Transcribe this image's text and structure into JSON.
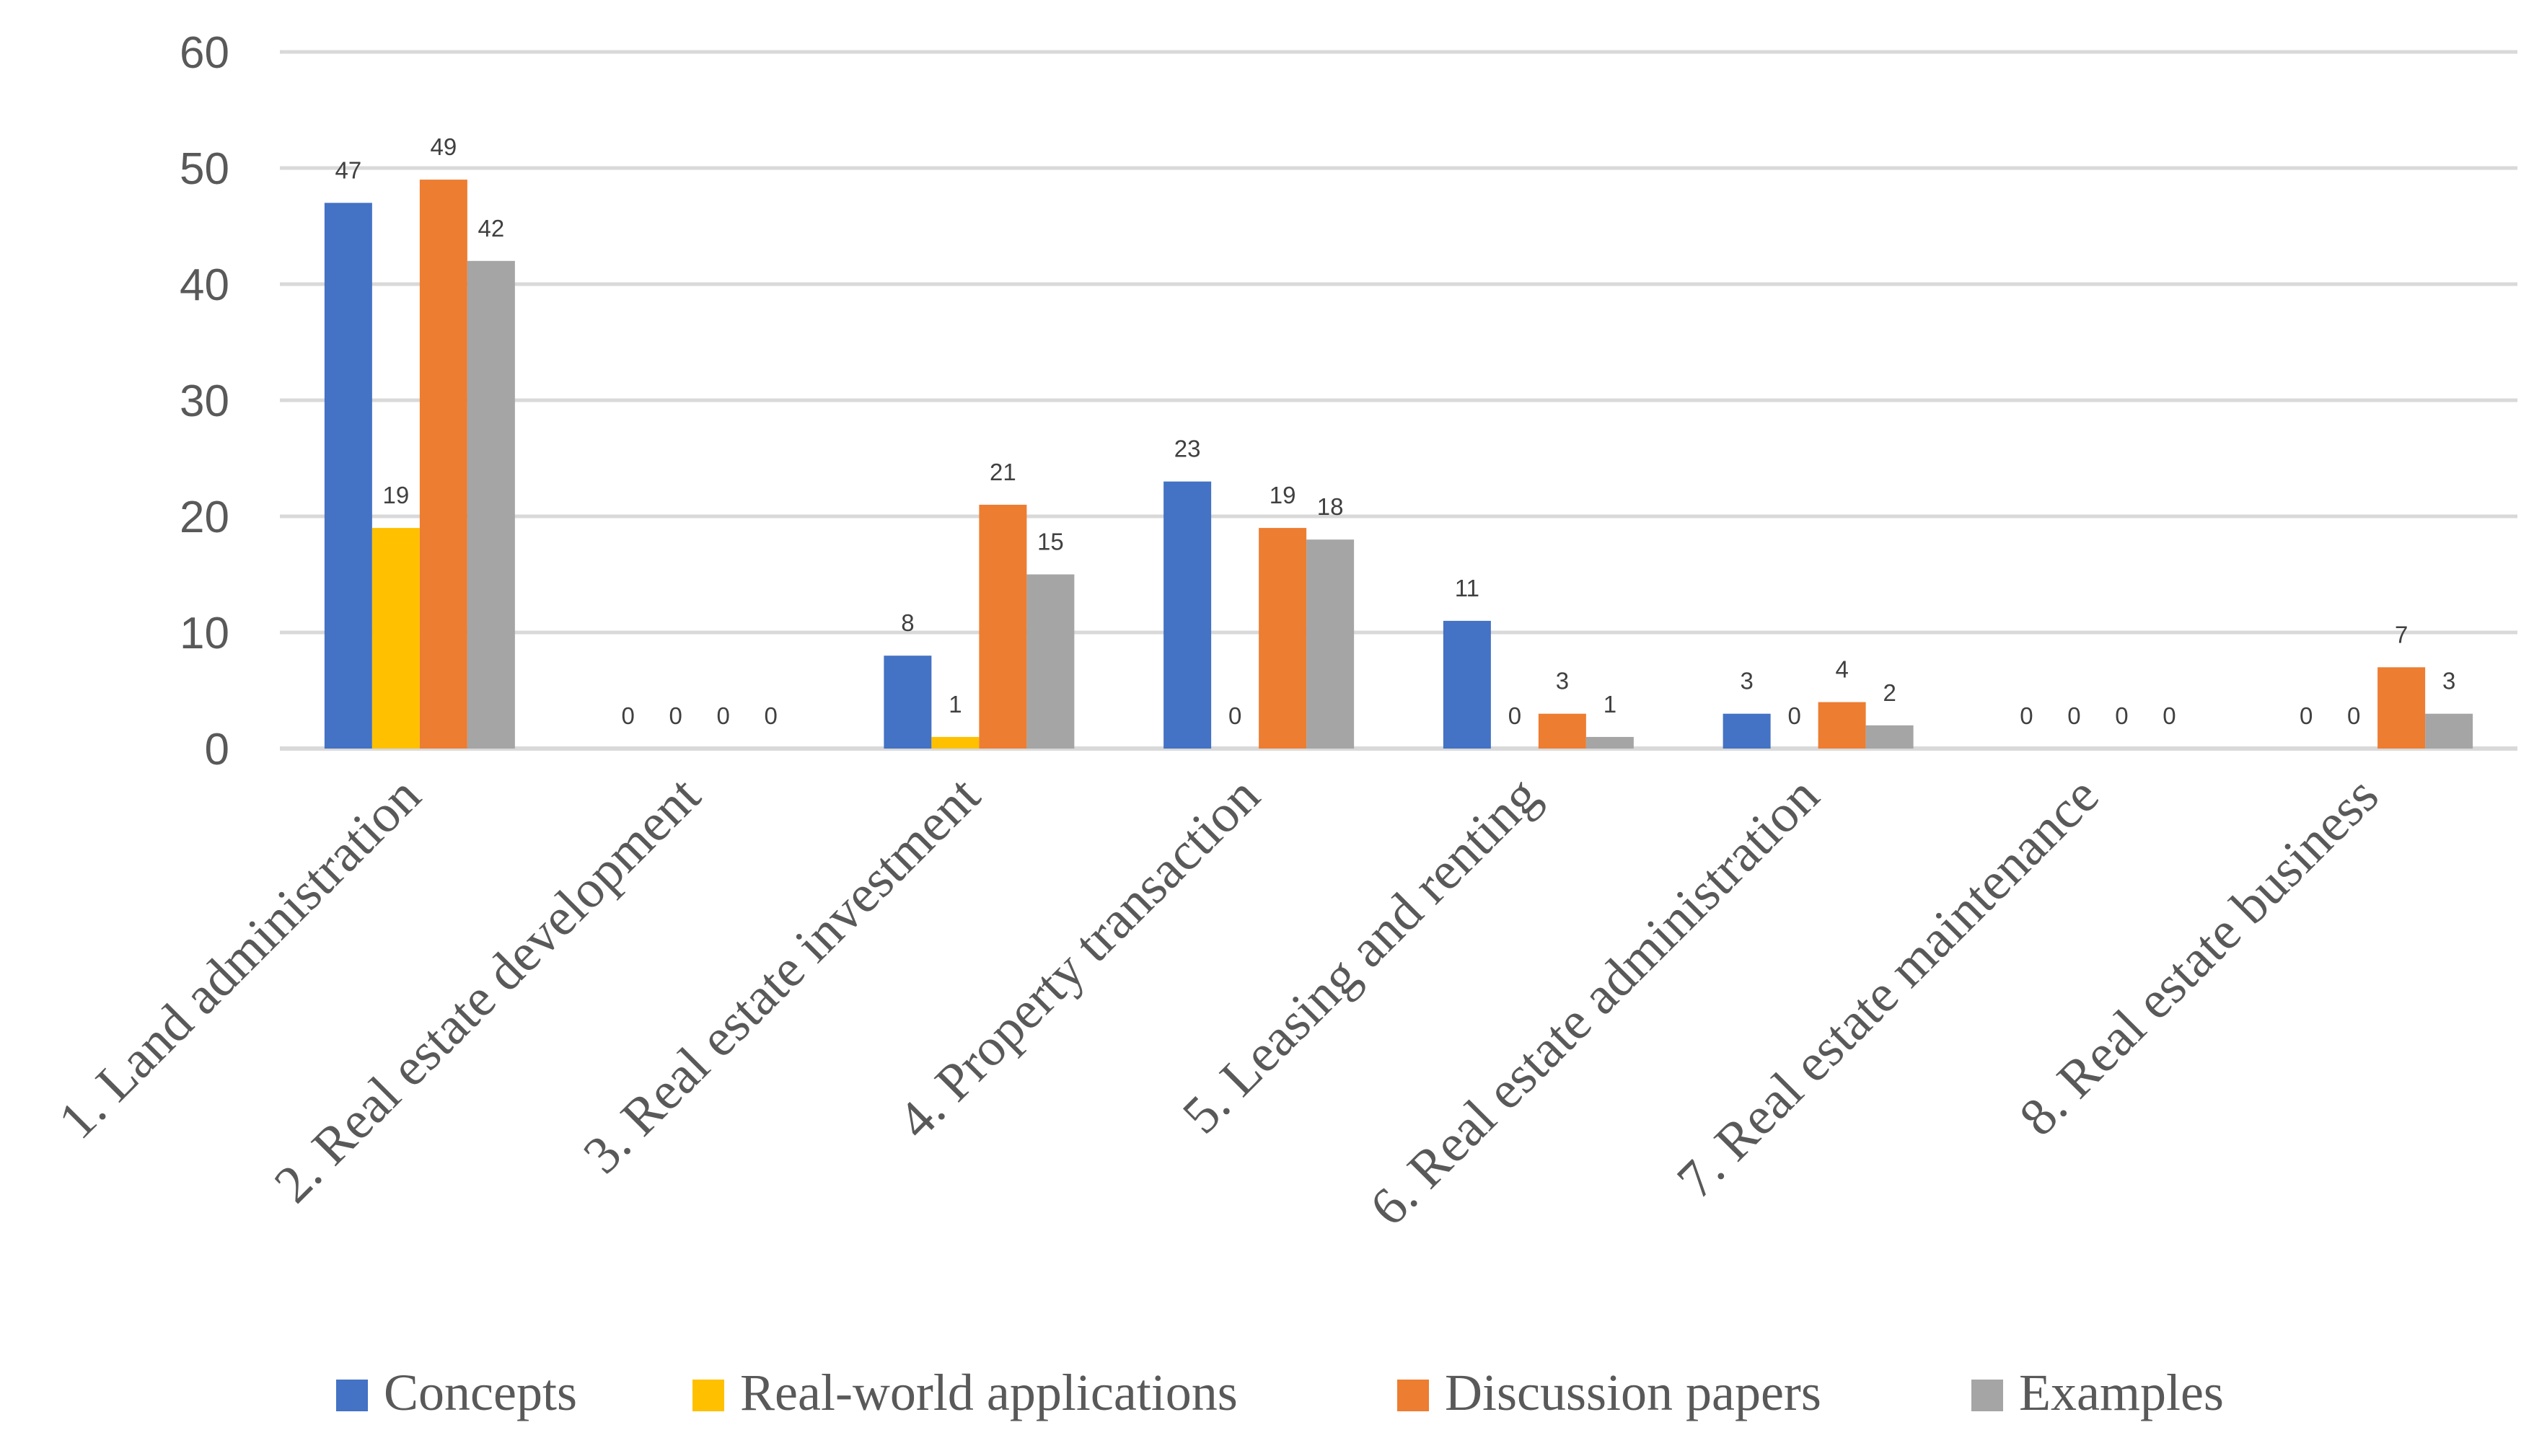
{
  "chart_data": {
    "type": "bar",
    "title": "",
    "xlabel": "",
    "ylabel": "",
    "ylim": [
      0,
      60
    ],
    "yticks": [
      0,
      10,
      20,
      30,
      40,
      50,
      60
    ],
    "grid": true,
    "legend_position": "bottom",
    "categories": [
      "1. Land administration",
      "2. Real estate development",
      "3. Real estate investment",
      "4. Property transaction",
      "5. Leasing and renting",
      "6. Real estate administration",
      "7. Real estate maintenance",
      "8. Real estate business"
    ],
    "series": [
      {
        "name": "Concepts",
        "color": "#4472c4",
        "values": [
          47,
          0,
          8,
          23,
          11,
          3,
          0,
          0
        ]
      },
      {
        "name": "Real-world applications",
        "color": "#ffc000",
        "values": [
          19,
          0,
          1,
          0,
          0,
          0,
          0,
          0
        ]
      },
      {
        "name": "Discussion papers",
        "color": "#ed7d31",
        "values": [
          49,
          0,
          21,
          19,
          3,
          4,
          0,
          7
        ]
      },
      {
        "name": "Examples",
        "color": "#a5a5a5",
        "values": [
          42,
          0,
          15,
          18,
          1,
          2,
          0,
          3
        ]
      }
    ]
  }
}
